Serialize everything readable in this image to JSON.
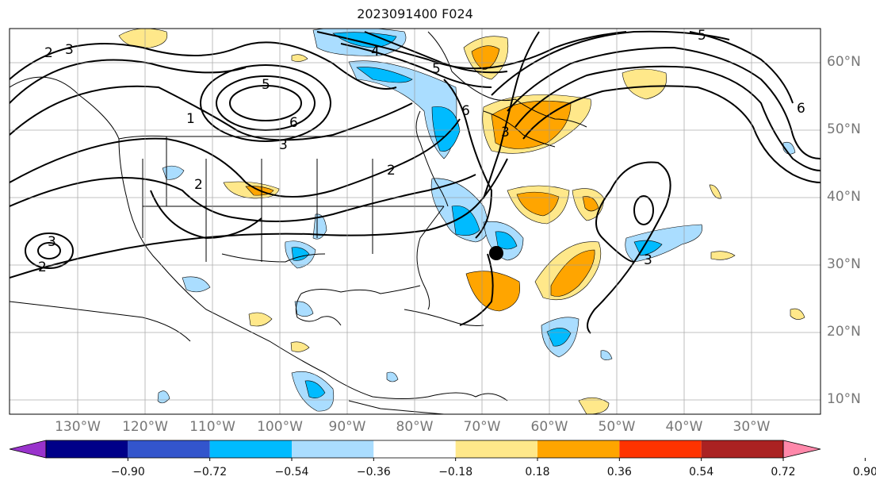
{
  "title": "2023091400 F024",
  "lat_labels": [
    "10°N",
    "20°N",
    "30°N",
    "40°N",
    "50°N",
    "60°N"
  ],
  "lon_labels": [
    "130°W",
    "120°W",
    "110°W",
    "100°W",
    "90°W",
    "80°W",
    "70°W",
    "60°W",
    "50°W",
    "40°W",
    "30°W"
  ],
  "colorbar": {
    "ticks": [
      "−0.90",
      "−0.72",
      "−0.54",
      "−0.36",
      "−0.18",
      "0.18",
      "0.36",
      "0.54",
      "0.72",
      "0.90"
    ],
    "colors": [
      "#9933cc",
      "#000088",
      "#3355cc",
      "#00bbff",
      "#aaddff",
      "#ffffff",
      "#ffe88a",
      "#ffa500",
      "#ff3300",
      "#aa2222",
      "#ff88aa"
    ]
  },
  "contour_labels": [
    "3",
    "2",
    "5",
    "6",
    "4",
    "3",
    "5",
    "6",
    "3",
    "2",
    "3",
    "2",
    "1",
    "6",
    "5",
    "2",
    "3"
  ],
  "storm_marker": {
    "lat": 32,
    "lon": -68
  }
}
